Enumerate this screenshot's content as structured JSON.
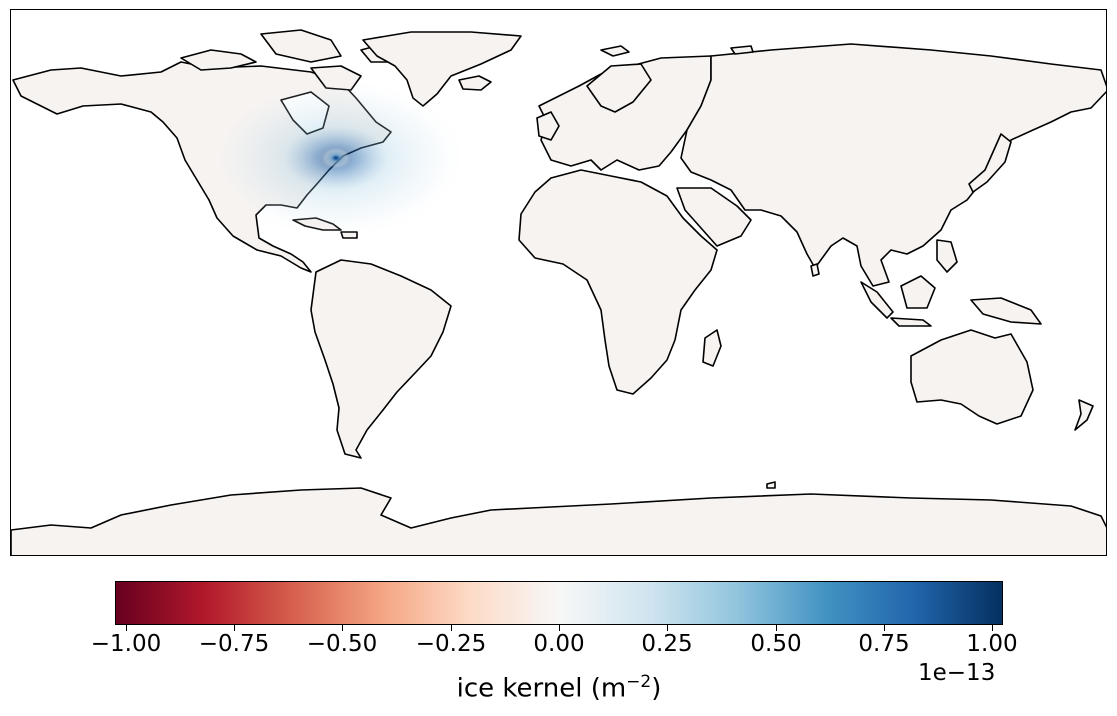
{
  "colorbar": {
    "ticks": [
      "−1.00",
      "−0.75",
      "−0.50",
      "−0.25",
      "0.00",
      "0.25",
      "0.50",
      "0.75",
      "1.00"
    ],
    "tick_values": [
      -1.0,
      -0.75,
      -0.5,
      -0.25,
      0.0,
      0.25,
      0.5,
      0.75,
      1.0
    ],
    "offset": "1e−13",
    "label_main": "ice kernel (m",
    "label_exp": "−2",
    "label_close": ")",
    "colormap": "RdBu",
    "colors": [
      "#67001f",
      "#b2182b",
      "#d6604d",
      "#f4a582",
      "#fddbc7",
      "#f7f7f7",
      "#d1e5f0",
      "#92c5de",
      "#4393c3",
      "#2166ac",
      "#053061"
    ]
  },
  "map": {
    "projection": "plate-carree",
    "land_color": "#f7f3f1",
    "ocean_color": "#ffffff",
    "coastline_color": "#000000",
    "highlight": {
      "region": "north-east-north-america",
      "color": "#2166ac"
    }
  }
}
